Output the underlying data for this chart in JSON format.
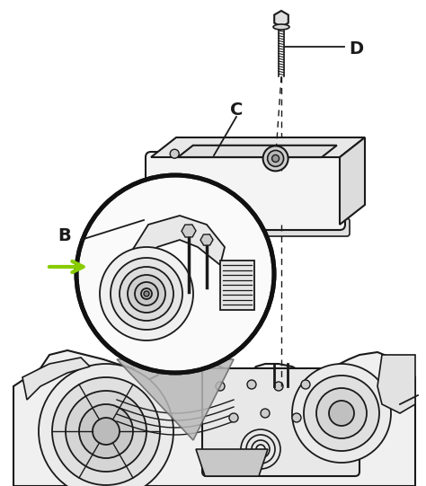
{
  "bg_color": "#ffffff",
  "label_B": "B",
  "label_C": "C",
  "label_D": "D",
  "line_color": "#1a1a1a",
  "arrow_color": "#88cc00",
  "label_fontsize": 14,
  "label_fontweight": "bold",
  "fig_w": 4.74,
  "fig_h": 5.41,
  "dpi": 100
}
